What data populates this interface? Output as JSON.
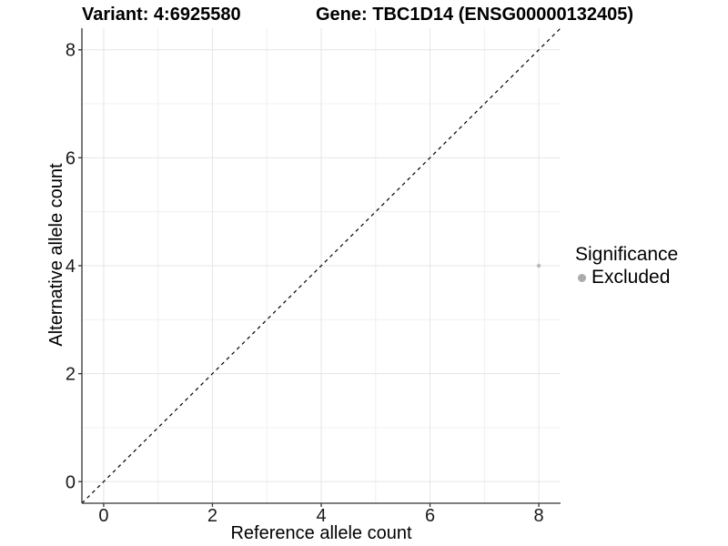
{
  "chart_data": {
    "type": "scatter",
    "titles": {
      "left": "Variant: 4:6925580",
      "right": "Gene: TBC1D14 (ENSG00000132405)"
    },
    "xlabel": "Reference allele count",
    "ylabel": "Alternative allele count",
    "xlim": [
      -0.4,
      8.4
    ],
    "ylim": [
      -0.4,
      8.4
    ],
    "xticks": [
      0,
      2,
      4,
      6,
      8
    ],
    "yticks": [
      0,
      2,
      4,
      6,
      8
    ],
    "xminor": [
      1,
      3,
      5,
      7
    ],
    "yminor": [
      1,
      3,
      5,
      7
    ],
    "grid": "on",
    "reference_line": {
      "type": "identity",
      "from": [
        -0.4,
        -0.4
      ],
      "to": [
        8.4,
        8.4
      ],
      "style": "dashed",
      "color": "#000000"
    },
    "series": [
      {
        "name": "Excluded",
        "marker": "circle",
        "color": "#b9b9b9",
        "size": 2.2,
        "points": [
          [
            8,
            4
          ]
        ]
      }
    ],
    "legend": {
      "title": "Significance",
      "position": "right",
      "items": [
        {
          "label": "Excluded",
          "color": "#ababab"
        }
      ]
    },
    "colors": {
      "background": "#ffffff",
      "axis_line": "#333333",
      "tick_mark": "#333333",
      "tick_text": "#1a1a1a",
      "grid_major": "#e5e5e5",
      "grid_minor": "#f0f0f0"
    }
  }
}
